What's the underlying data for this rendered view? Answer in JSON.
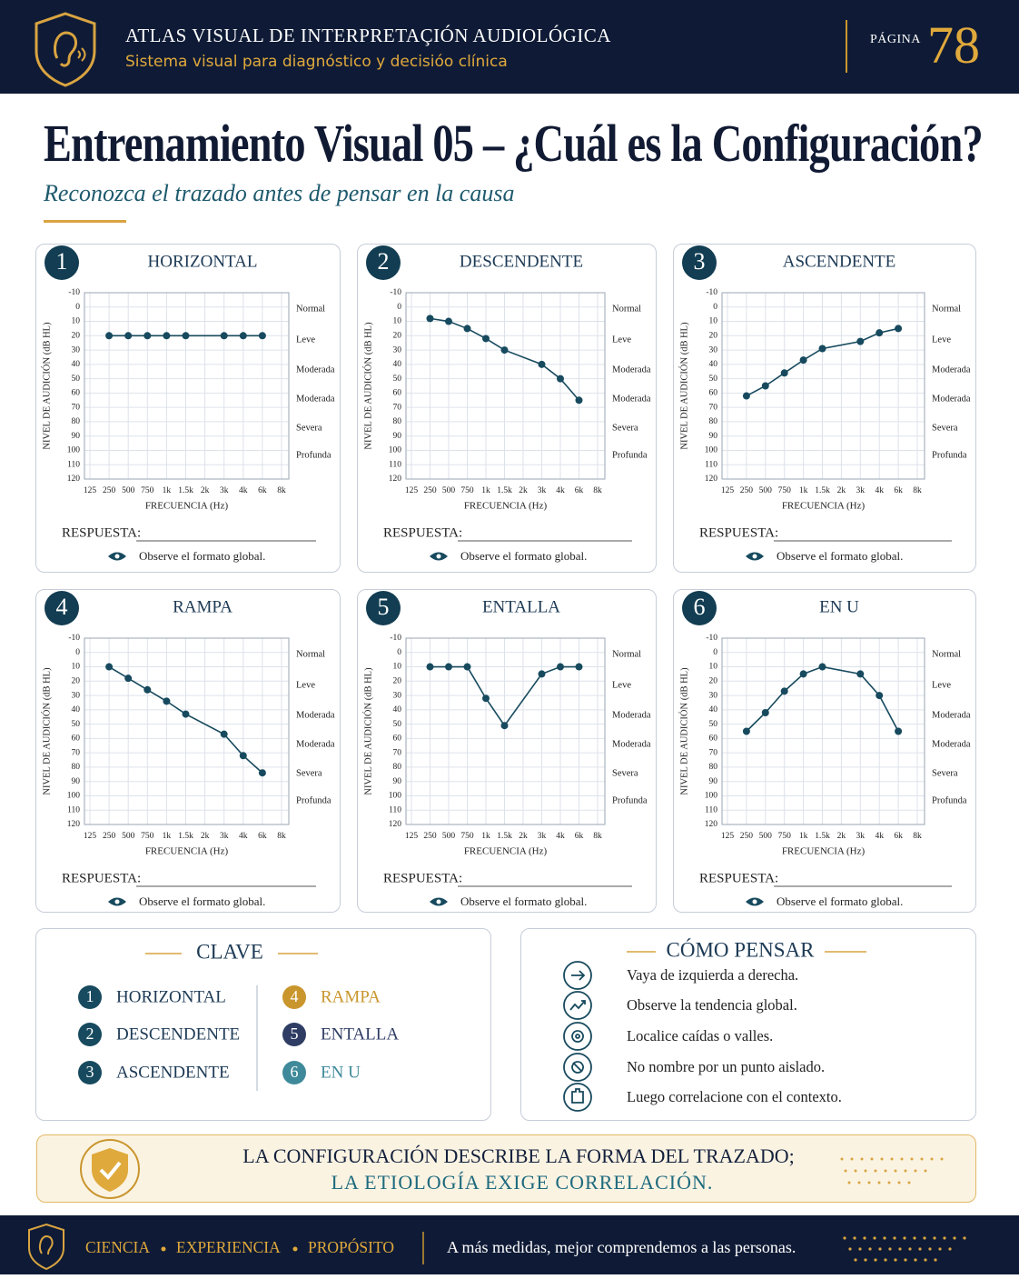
{
  "header": {
    "title": "ATLAS VISUAL DE INTERPRETAÇIÓN AUDIOLÓGICA",
    "subtitle": "Sistema visual para diagnóstico y decisióo clínica",
    "page_label": "PÁGINA",
    "page_number": "78"
  },
  "title": "Entrenamiento Visual 05 – ¿Cuál es la Configuración?",
  "subtitle": "Reconozca el trazado antes de pensar en la causa",
  "chart_data": [
    {
      "type": "line",
      "number": "1",
      "title": "HORIZONTAL",
      "y_label": "NIVEL DE AUDICIÓN (dB HL)",
      "x_label": "FRECUENCIA (Hz)",
      "xticks": [
        125,
        250,
        500,
        750,
        {
          "value": 1000,
          "label": "1k"
        },
        {
          "value": 1500,
          "label": "1.5k"
        },
        {
          "value": 2000,
          "label": "2k"
        },
        {
          "value": 3000,
          "label": "3k"
        },
        {
          "value": 4000,
          "label": "4k"
        },
        {
          "value": 6000,
          "label": "6k"
        },
        {
          "value": 8000,
          "label": "8k"
        }
      ],
      "x": [
        250,
        500,
        750,
        1000,
        1500,
        3000,
        4000,
        6000
      ],
      "values": [
        20,
        20,
        20,
        20,
        20,
        20,
        20,
        20
      ],
      "color": "#174a5e",
      "ylim": [
        -10,
        120
      ],
      "y_inverted": true,
      "yticks": [
        -10,
        0,
        10,
        20,
        30,
        40,
        50,
        60,
        70,
        80,
        90,
        100,
        110,
        120
      ],
      "grid": true,
      "degree_labels": [
        "Normal",
        "Leve",
        "Moderada",
        "Moderada",
        "Severa",
        "Profunda"
      ],
      "answer_label": "RESPUESTA:",
      "hint": "Observe el formato global."
    },
    {
      "type": "line",
      "number": "2",
      "title": "DESCENDENTE",
      "y_label": "NIVEL DE AUDICIÓN (dB HL)",
      "x_label": "FRECUENCIA (Hz)",
      "xticks": [
        125,
        250,
        500,
        750,
        {
          "value": 1000,
          "label": "1k"
        },
        {
          "value": 1500,
          "label": "1.5k"
        },
        {
          "value": 2000,
          "label": "2k"
        },
        {
          "value": 3000,
          "label": "3k"
        },
        {
          "value": 4000,
          "label": "4k"
        },
        {
          "value": 6000,
          "label": "6k"
        },
        {
          "value": 8000,
          "label": "8k"
        }
      ],
      "x": [
        250,
        500,
        750,
        1000,
        1500,
        3000,
        4000,
        6000
      ],
      "values": [
        8,
        10,
        15,
        22,
        30,
        40,
        50,
        65
      ],
      "color": "#174a5e",
      "ylim": [
        -10,
        120
      ],
      "y_inverted": true,
      "yticks": [
        -10,
        0,
        10,
        20,
        30,
        40,
        50,
        60,
        70,
        80,
        90,
        100,
        110,
        120
      ],
      "grid": true,
      "degree_labels": [
        "Normal",
        "Leve",
        "Moderada",
        "Moderada",
        "Severa",
        "Profunda"
      ],
      "answer_label": "RESPUESTA:",
      "hint": "Observe el formato global."
    },
    {
      "type": "line",
      "number": "3",
      "title": "ASCENDENTE",
      "y_label": "NIVEL DE AUDICIÓN (dB HL)",
      "x_label": "FRECUENCIA (Hz)",
      "xticks": [
        125,
        250,
        500,
        750,
        {
          "value": 1000,
          "label": "1k"
        },
        {
          "value": 1500,
          "label": "1.5k"
        },
        {
          "value": 2000,
          "label": "2k"
        },
        {
          "value": 3000,
          "label": "3k"
        },
        {
          "value": 4000,
          "label": "4k"
        },
        {
          "value": 6000,
          "label": "6k"
        },
        {
          "value": 8000,
          "label": "8k"
        }
      ],
      "x": [
        250,
        500,
        750,
        1000,
        1500,
        3000,
        4000,
        6000
      ],
      "values": [
        62,
        55,
        46,
        37,
        29,
        24,
        18,
        15
      ],
      "color": "#174a5e",
      "ylim": [
        -10,
        120
      ],
      "y_inverted": true,
      "yticks": [
        -10,
        0,
        10,
        20,
        30,
        40,
        50,
        60,
        70,
        80,
        90,
        100,
        110,
        120
      ],
      "grid": true,
      "degree_labels": [
        "Normal",
        "Leve",
        "Moderada",
        "Moderada",
        "Severa",
        "Profunda"
      ],
      "answer_label": "RESPUESTA:",
      "hint": "Observe el formato global."
    },
    {
      "type": "line",
      "number": "4",
      "title": "RAMPA",
      "y_label": "NIVEL DE AUDICIÓN (dB HL)",
      "x_label": "FRECUENCIA (Hz)",
      "xticks": [
        125,
        250,
        500,
        750,
        {
          "value": 1000,
          "label": "1k"
        },
        {
          "value": 1500,
          "label": "1.5k"
        },
        {
          "value": 2000,
          "label": "2k"
        },
        {
          "value": 3000,
          "label": "3k"
        },
        {
          "value": 4000,
          "label": "4k"
        },
        {
          "value": 6000,
          "label": "6k"
        },
        {
          "value": 8000,
          "label": "8k"
        }
      ],
      "x": [
        250,
        500,
        750,
        1000,
        1500,
        3000,
        4000,
        6000
      ],
      "values": [
        10,
        18,
        26,
        34,
        43,
        57,
        72,
        84
      ],
      "color": "#174a5e",
      "ylim": [
        -10,
        120
      ],
      "y_inverted": true,
      "yticks": [
        -10,
        0,
        10,
        20,
        30,
        40,
        50,
        60,
        70,
        80,
        90,
        100,
        110,
        120
      ],
      "grid": true,
      "degree_labels": [
        "Normal",
        "Leve",
        "Moderada",
        "Moderada",
        "Severa",
        "Profunda"
      ],
      "answer_label": "RESPUESTA:",
      "hint": "Observe el formato global."
    },
    {
      "type": "line",
      "number": "5",
      "title": "ENTALLA",
      "y_label": "NIVEL DE AUDICIÓN (dB HL)",
      "x_label": "FRECUENCIA (Hz)",
      "xticks": [
        125,
        250,
        500,
        750,
        {
          "value": 1000,
          "label": "1k"
        },
        {
          "value": 1500,
          "label": "1.5k"
        },
        {
          "value": 2000,
          "label": "2k"
        },
        {
          "value": 3000,
          "label": "3k"
        },
        {
          "value": 4000,
          "label": "4k"
        },
        {
          "value": 6000,
          "label": "6k"
        },
        {
          "value": 8000,
          "label": "8k"
        }
      ],
      "x": [
        250,
        500,
        750,
        1000,
        1500,
        3000,
        4000,
        6000
      ],
      "values": [
        10,
        10,
        10,
        32,
        51,
        15,
        10,
        10
      ],
      "color": "#174a5e",
      "ylim": [
        -10,
        120
      ],
      "y_inverted": true,
      "yticks": [
        -10,
        0,
        10,
        20,
        30,
        40,
        50,
        60,
        70,
        80,
        90,
        100,
        110,
        120
      ],
      "grid": true,
      "degree_labels": [
        "Normal",
        "Leve",
        "Moderada",
        "Moderada",
        "Severa",
        "Profunda"
      ],
      "answer_label": "RESPUESTA:",
      "hint": "Observe el formato global."
    },
    {
      "type": "line",
      "number": "6",
      "title": "EN U",
      "y_label": "NIVEL DE AUDICIÓN (dB HL)",
      "x_label": "FRECUENCIA (Hz)",
      "xticks": [
        125,
        250,
        500,
        750,
        {
          "value": 1000,
          "label": "1k"
        },
        {
          "value": 1500,
          "label": "1.5k"
        },
        {
          "value": 2000,
          "label": "2k"
        },
        {
          "value": 3000,
          "label": "3k"
        },
        {
          "value": 4000,
          "label": "4k"
        },
        {
          "value": 6000,
          "label": "6k"
        },
        {
          "value": 8000,
          "label": "8k"
        }
      ],
      "x": [
        250,
        500,
        750,
        1000,
        1500,
        3000,
        4000,
        6000
      ],
      "values": [
        55,
        42,
        27,
        15,
        10,
        15,
        30,
        55
      ],
      "color": "#174a5e",
      "ylim": [
        -10,
        120
      ],
      "y_inverted": true,
      "yticks": [
        -10,
        0,
        10,
        20,
        30,
        40,
        50,
        60,
        70,
        80,
        90,
        100,
        110,
        120
      ],
      "grid": true,
      "degree_labels": [
        "Normal",
        "Leve",
        "Moderada",
        "Moderada",
        "Severa",
        "Profunda"
      ],
      "answer_label": "RESPUESTA:",
      "hint": "Observe el formato global."
    }
  ],
  "key": {
    "title": "CLAVE",
    "items": [
      {
        "number": "1",
        "label": "HORIZONTAL",
        "color": "#174a5e"
      },
      {
        "number": "2",
        "label": "DESCENDENTE",
        "color": "#174a5e"
      },
      {
        "number": "3",
        "label": "ASCENDENTE",
        "color": "#174a5e"
      },
      {
        "number": "4",
        "label": "RAMPA",
        "color": "#c9962e"
      },
      {
        "number": "5",
        "label": "ENTALLA",
        "color": "#2f3d64"
      },
      {
        "number": "6",
        "label": "EN U",
        "color": "#3f8a9a"
      }
    ]
  },
  "thinking": {
    "title": "CÓMO PENSAR",
    "items": [
      "Vaya de izquierda a derecha.",
      "Observe la tendencia global.",
      "Localice caídas o valles.",
      "No nombre por un punto aislado.",
      "Luego correlacione con el contexto."
    ]
  },
  "banner": {
    "line1": "LA CONFIGURACIÓN DESCRIBE LA FORMA DEL TRAZADO;",
    "line2": "LA ETIOLOGÍA EXIGE CORRELACIÓN."
  },
  "footer": {
    "items": [
      "CIENCIA",
      "EXPERIENCIA",
      "PROPÓSITO"
    ],
    "tagline": "A más medidas, mejor comprendemos a las personas."
  }
}
